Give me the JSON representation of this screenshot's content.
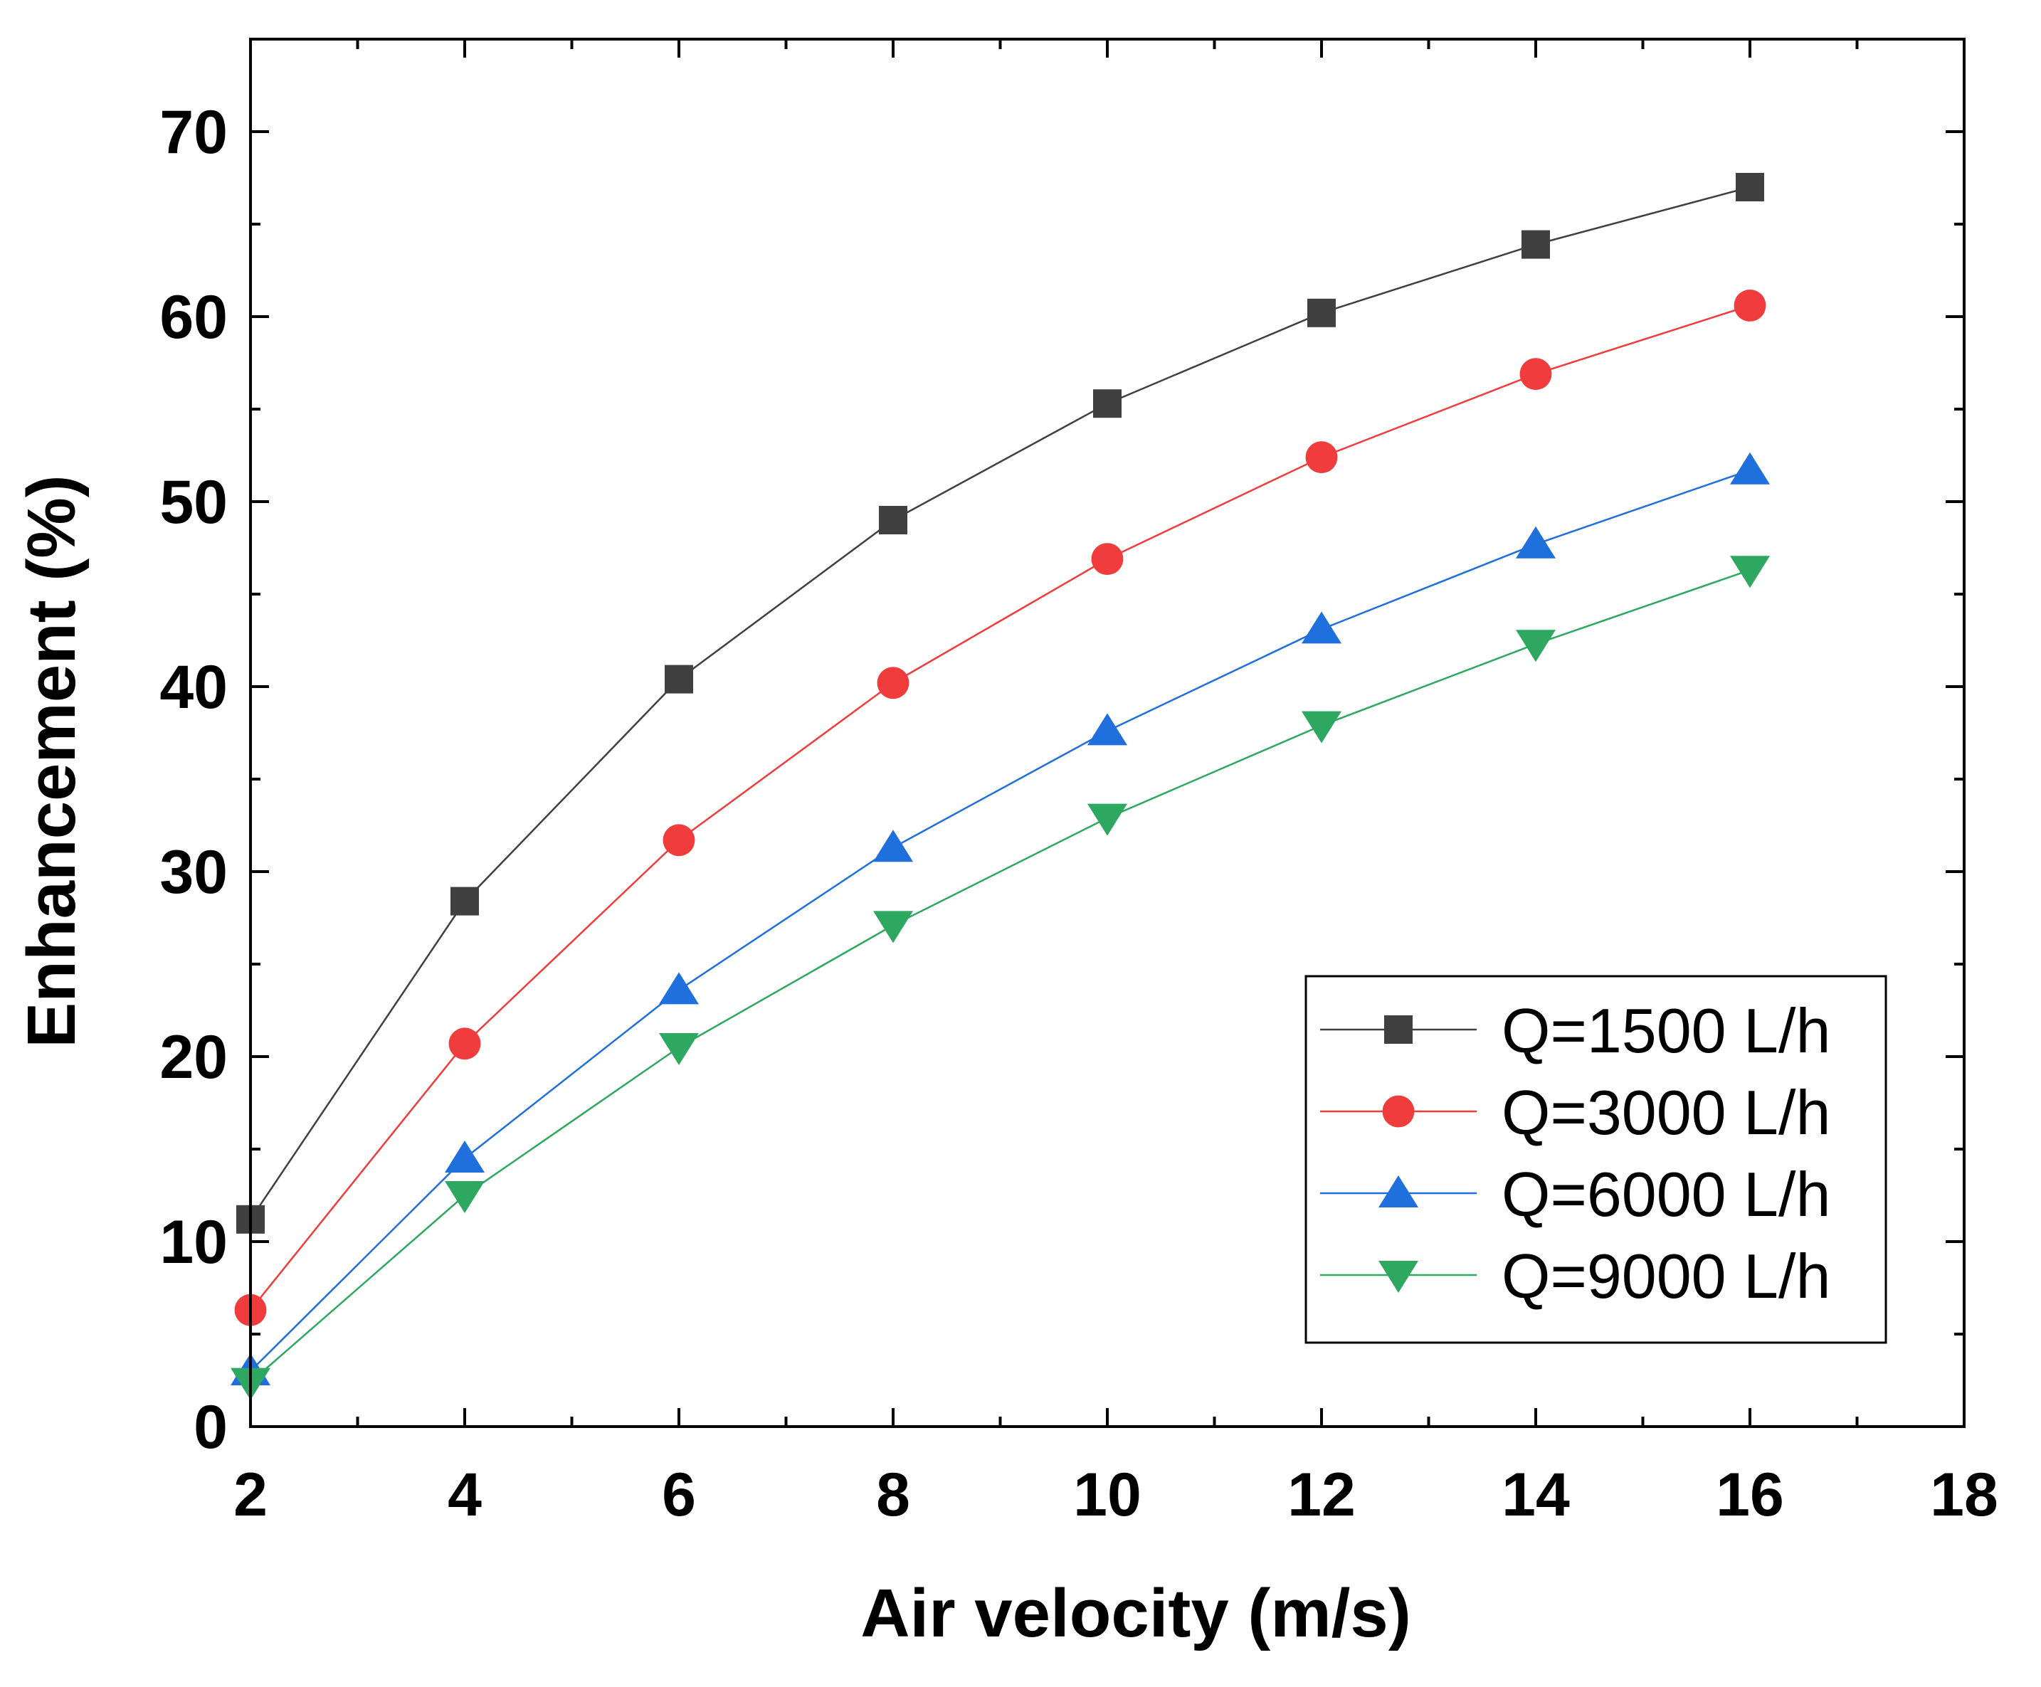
{
  "chart_data": {
    "type": "line",
    "title": "",
    "xlabel": "Air velocity (m/s)",
    "ylabel": "Enhancement (%)",
    "xlim": [
      2,
      18
    ],
    "ylim": [
      0,
      75
    ],
    "xticks": [
      2,
      4,
      6,
      8,
      10,
      12,
      14,
      16,
      18
    ],
    "yticks": [
      0,
      10,
      20,
      30,
      40,
      50,
      60,
      70
    ],
    "x": [
      2,
      4,
      6,
      8,
      10,
      12,
      14,
      16
    ],
    "grid": false,
    "legend_position": "bottom-right",
    "series": [
      {
        "name": "Q=1500 L/h",
        "color": "#404040",
        "marker": "square",
        "values": [
          11.2,
          28.4,
          40.4,
          49.0,
          55.3,
          60.2,
          63.9,
          67.0
        ]
      },
      {
        "name": "Q=3000 L/h",
        "color": "#f03c3c",
        "marker": "circle",
        "values": [
          6.3,
          20.7,
          31.7,
          40.2,
          46.9,
          52.4,
          56.9,
          60.6
        ]
      },
      {
        "name": "Q=6000 L/h",
        "color": "#1f6fdc",
        "marker": "triangle-up",
        "values": [
          3.0,
          14.5,
          23.6,
          31.3,
          37.6,
          43.1,
          47.7,
          51.7
        ]
      },
      {
        "name": "Q=9000 L/h",
        "color": "#2ea860",
        "marker": "triangle-down",
        "values": [
          2.4,
          12.5,
          20.5,
          27.1,
          32.9,
          37.9,
          42.3,
          46.3
        ]
      }
    ]
  }
}
